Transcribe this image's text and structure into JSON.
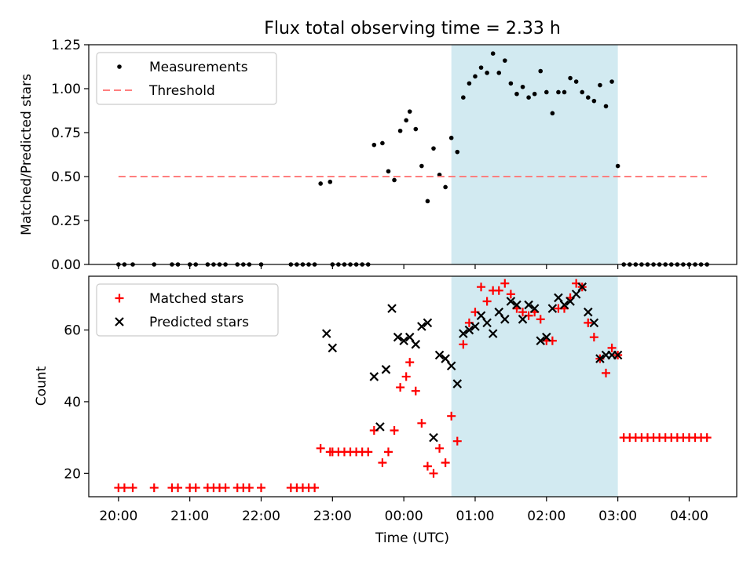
{
  "figure": {
    "title": "Flux total observing time = 2.33 h",
    "xlabel": "Time (UTC)"
  },
  "chart_data": [
    {
      "type": "scatter",
      "ylabel": "Matched/Predicted stars",
      "xlim": [
        "19:35",
        "04:40"
      ],
      "ylim": [
        0,
        1.25
      ],
      "yticks": [
        0.0,
        0.25,
        0.5,
        0.75,
        1.0,
        1.25
      ],
      "ytick_labels": [
        "0.00",
        "0.25",
        "0.50",
        "0.75",
        "1.00",
        "1.25"
      ],
      "grid": false,
      "legend_position": "upper-left",
      "shaded_interval": {
        "start": "00:40",
        "end": "03:00",
        "color": "#add8e6"
      },
      "series": [
        {
          "name": "Measurements",
          "marker": "dot",
          "color": "#000000",
          "x": [
            "20:00",
            "20:05",
            "20:12",
            "20:30",
            "20:45",
            "20:50",
            "21:00",
            "21:05",
            "21:15",
            "21:20",
            "21:25",
            "21:30",
            "21:40",
            "21:45",
            "21:50",
            "22:00",
            "22:25",
            "22:30",
            "22:35",
            "22:40",
            "22:45",
            "22:50",
            "22:58",
            "23:00",
            "23:05",
            "23:10",
            "23:15",
            "23:20",
            "23:25",
            "23:30",
            "23:35",
            "23:42",
            "23:47",
            "23:52",
            "23:57",
            "00:02",
            "00:05",
            "00:10",
            "00:15",
            "00:20",
            "00:25",
            "00:30",
            "00:35",
            "00:40",
            "00:45",
            "00:50",
            "00:55",
            "01:00",
            "01:05",
            "01:10",
            "01:15",
            "01:20",
            "01:25",
            "01:30",
            "01:35",
            "01:40",
            "01:45",
            "01:50",
            "01:55",
            "02:00",
            "02:05",
            "02:10",
            "02:15",
            "02:20",
            "02:25",
            "02:30",
            "02:35",
            "02:40",
            "02:45",
            "02:50",
            "02:55",
            "03:00",
            "03:05",
            "03:10",
            "03:15",
            "03:20",
            "03:25",
            "03:30",
            "03:35",
            "03:40",
            "03:45",
            "03:50",
            "03:55",
            "04:00",
            "04:05",
            "04:10",
            "04:15"
          ],
          "y": [
            0,
            0,
            0,
            0,
            0,
            0,
            0,
            0,
            0,
            0,
            0,
            0,
            0,
            0,
            0,
            0,
            0,
            0,
            0,
            0,
            0,
            0.46,
            0.47,
            0,
            0,
            0,
            0,
            0,
            0,
            0,
            0.68,
            0.69,
            0.53,
            0.48,
            0.76,
            0.82,
            0.87,
            0.77,
            0.56,
            0.36,
            0.66,
            0.51,
            0.44,
            0.72,
            0.64,
            0.95,
            1.03,
            1.07,
            1.12,
            1.09,
            1.2,
            1.09,
            1.16,
            1.03,
            0.97,
            1.01,
            0.95,
            0.97,
            1.1,
            0.98,
            0.86,
            0.98,
            0.98,
            1.06,
            1.04,
            0.98,
            0.95,
            0.93,
            1.02,
            0.9,
            1.04,
            0.56,
            0,
            0,
            0,
            0,
            0,
            0,
            0,
            0,
            0,
            0,
            0,
            0,
            0,
            0,
            0
          ]
        },
        {
          "name": "Threshold",
          "style": "dashed",
          "color": "#ff7f7f",
          "x": [
            "20:00",
            "04:15"
          ],
          "y": [
            0.5,
            0.5
          ]
        }
      ]
    },
    {
      "type": "scatter",
      "ylabel": "Count",
      "xlim": [
        "19:35",
        "04:40"
      ],
      "ylim": [
        13.5,
        75
      ],
      "yticks": [
        20,
        40,
        60
      ],
      "ytick_labels": [
        "20",
        "40",
        "60"
      ],
      "xticks": [
        "20:00",
        "21:00",
        "22:00",
        "23:00",
        "00:00",
        "01:00",
        "02:00",
        "03:00",
        "04:00"
      ],
      "grid": false,
      "legend_position": "upper-left",
      "shaded_interval": {
        "start": "00:40",
        "end": "03:00",
        "color": "#add8e6"
      },
      "series": [
        {
          "name": "Matched stars",
          "marker": "plus",
          "color": "#ff0000",
          "x": [
            "20:00",
            "20:05",
            "20:12",
            "20:30",
            "20:45",
            "20:50",
            "21:00",
            "21:05",
            "21:15",
            "21:20",
            "21:25",
            "21:30",
            "21:40",
            "21:45",
            "21:50",
            "22:00",
            "22:25",
            "22:30",
            "22:35",
            "22:40",
            "22:45",
            "22:50",
            "22:58",
            "23:00",
            "23:05",
            "23:10",
            "23:15",
            "23:20",
            "23:25",
            "23:30",
            "23:35",
            "23:42",
            "23:47",
            "23:52",
            "23:57",
            "00:02",
            "00:05",
            "00:10",
            "00:15",
            "00:20",
            "00:25",
            "00:30",
            "00:35",
            "00:40",
            "00:45",
            "00:50",
            "00:55",
            "01:00",
            "01:05",
            "01:10",
            "01:15",
            "01:20",
            "01:25",
            "01:30",
            "01:35",
            "01:40",
            "01:45",
            "01:50",
            "01:55",
            "02:00",
            "02:05",
            "02:10",
            "02:15",
            "02:20",
            "02:25",
            "02:30",
            "02:35",
            "02:40",
            "02:45",
            "02:50",
            "02:55",
            "03:00",
            "03:05",
            "03:10",
            "03:15",
            "03:20",
            "03:25",
            "03:30",
            "03:35",
            "03:40",
            "03:45",
            "03:50",
            "03:55",
            "04:00",
            "04:05",
            "04:10",
            "04:15"
          ],
          "y": [
            16,
            16,
            16,
            16,
            16,
            16,
            16,
            16,
            16,
            16,
            16,
            16,
            16,
            16,
            16,
            16,
            16,
            16,
            16,
            16,
            16,
            27,
            26,
            26,
            26,
            26,
            26,
            26,
            26,
            26,
            32,
            23,
            26,
            32,
            44,
            47,
            51,
            43,
            34,
            22,
            20,
            27,
            23,
            36,
            29,
            56,
            62,
            65,
            72,
            68,
            71,
            71,
            73,
            70,
            66,
            65,
            64,
            65,
            63,
            57,
            57,
            66,
            66,
            69,
            73,
            72,
            62,
            58,
            52,
            48,
            55,
            53,
            30,
            30,
            30,
            30,
            30,
            30,
            30,
            30,
            30,
            30,
            30,
            30,
            30,
            30,
            30
          ]
        },
        {
          "name": "Predicted stars",
          "marker": "x",
          "color": "#000000",
          "x": [
            "22:55",
            "23:00",
            "23:35",
            "23:40",
            "23:45",
            "23:50",
            "23:55",
            "00:00",
            "00:05",
            "00:10",
            "00:15",
            "00:20",
            "00:25",
            "00:30",
            "00:35",
            "00:40",
            "00:45",
            "00:50",
            "00:55",
            "01:00",
            "01:05",
            "01:10",
            "01:15",
            "01:20",
            "01:25",
            "01:30",
            "01:35",
            "01:40",
            "01:45",
            "01:50",
            "01:55",
            "02:00",
            "02:05",
            "02:10",
            "02:15",
            "02:20",
            "02:25",
            "02:30",
            "02:35",
            "02:40",
            "02:45",
            "02:50",
            "02:55",
            "03:00"
          ],
          "y": [
            59,
            55,
            47,
            33,
            49,
            66,
            58,
            57,
            58,
            56,
            61,
            62,
            30,
            53,
            52,
            50,
            45,
            59,
            60,
            61,
            64,
            62,
            59,
            65,
            63,
            68,
            67,
            63,
            67,
            66,
            57,
            58,
            66,
            69,
            67,
            68,
            70,
            72,
            65,
            62,
            52,
            53,
            53,
            53
          ]
        }
      ]
    }
  ]
}
